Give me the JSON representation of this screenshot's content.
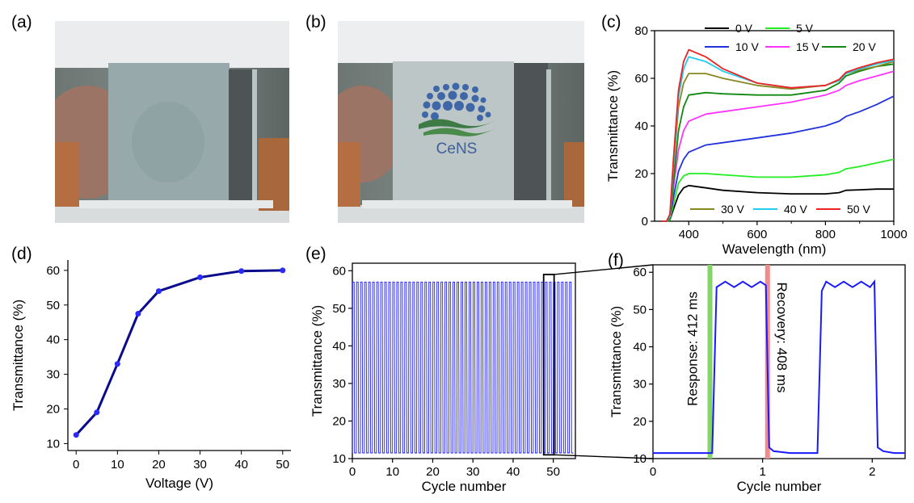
{
  "panels": {
    "a": "(a)",
    "b": "(b)",
    "c": "(c)",
    "d": "(d)",
    "e": "(e)",
    "f": "(f)"
  },
  "photo_b": {
    "logo_text": "CeNS"
  },
  "colors": {
    "blue_curve": "#1a1aff",
    "dark_blue": "#0a0a8c",
    "response_bar": "#86d36b",
    "recovery_bar": "#f08c8c"
  },
  "chart_data": [
    {
      "panel": "c",
      "type": "line",
      "xlabel": "Wavelength (nm)",
      "ylabel": "Transmittance (%)",
      "xlim": [
        300,
        1000
      ],
      "ylim": [
        0,
        80
      ],
      "xticks": [
        400,
        600,
        800,
        1000
      ],
      "yticks": [
        0,
        20,
        40,
        60,
        80
      ],
      "legend": "top",
      "series": [
        {
          "name": "0 V",
          "color": "#000000",
          "x": [
            320,
            335,
            345,
            355,
            370,
            385,
            400,
            450,
            500,
            600,
            700,
            800,
            840,
            860,
            900,
            950,
            1000
          ],
          "y": [
            0,
            0,
            0.5,
            5,
            11,
            14,
            15,
            14,
            13,
            12,
            11.5,
            11.5,
            12,
            13,
            13.2,
            13.5,
            13.5
          ]
        },
        {
          "name": "5 V",
          "color": "#22ee22",
          "x": [
            320,
            335,
            345,
            355,
            370,
            385,
            400,
            450,
            500,
            600,
            700,
            800,
            840,
            860,
            900,
            950,
            1000
          ],
          "y": [
            0,
            0,
            0.5,
            7,
            16,
            19,
            20,
            20,
            19.5,
            18.5,
            18.5,
            19.5,
            20.5,
            22,
            23,
            24.5,
            26
          ]
        },
        {
          "name": "10 V",
          "color": "#2233dd",
          "x": [
            320,
            335,
            345,
            355,
            370,
            385,
            400,
            450,
            500,
            600,
            700,
            800,
            840,
            860,
            900,
            950,
            1000
          ],
          "y": [
            0,
            0,
            1,
            10,
            21,
            26,
            29,
            32,
            33,
            35,
            37,
            40,
            42,
            44,
            46,
            49,
            52.5
          ]
        },
        {
          "name": "15 V",
          "color": "#ff33ff",
          "x": [
            320,
            335,
            345,
            355,
            370,
            385,
            400,
            450,
            500,
            600,
            700,
            800,
            840,
            860,
            900,
            950,
            1000
          ],
          "y": [
            0,
            0,
            1,
            14,
            30,
            38,
            42,
            45,
            46,
            48,
            50,
            53,
            55,
            57,
            59,
            61,
            63
          ]
        },
        {
          "name": "20 V",
          "color": "#118811",
          "x": [
            320,
            335,
            345,
            355,
            370,
            385,
            400,
            450,
            500,
            600,
            700,
            800,
            840,
            860,
            900,
            950,
            1000
          ],
          "y": [
            0,
            0,
            1,
            16,
            38,
            48,
            53,
            54,
            53.5,
            53,
            53,
            55,
            58,
            61,
            63,
            65,
            66
          ]
        },
        {
          "name": "30 V",
          "color": "#888822",
          "x": [
            320,
            335,
            345,
            355,
            370,
            385,
            400,
            450,
            500,
            600,
            700,
            800,
            840,
            860,
            900,
            950,
            1000
          ],
          "y": [
            0,
            0,
            2,
            22,
            48,
            58,
            62,
            62,
            60,
            57,
            55.5,
            57,
            59,
            62,
            63.5,
            65,
            67
          ]
        },
        {
          "name": "40 V",
          "color": "#22ccee",
          "x": [
            320,
            335,
            345,
            355,
            370,
            385,
            400,
            450,
            500,
            600,
            700,
            800,
            840,
            860,
            900,
            950,
            1000
          ],
          "y": [
            0,
            0,
            2,
            24,
            52,
            64,
            69,
            67,
            63,
            58,
            56,
            57,
            59,
            62,
            64,
            66,
            67.5
          ]
        },
        {
          "name": "50 V",
          "color": "#ee2222",
          "x": [
            320,
            335,
            345,
            355,
            370,
            385,
            400,
            450,
            500,
            600,
            700,
            800,
            840,
            860,
            900,
            950,
            1000
          ],
          "y": [
            0,
            0,
            3,
            26,
            55,
            67,
            72,
            69,
            64,
            58,
            56,
            57,
            59.5,
            62.5,
            64.5,
            66.5,
            68
          ]
        }
      ]
    },
    {
      "panel": "d",
      "type": "line",
      "xlabel": "Voltage (V)",
      "ylabel": "Transmittance (%)",
      "xlim": [
        -2,
        52
      ],
      "ylim": [
        8,
        63
      ],
      "xticks": [
        0,
        10,
        20,
        30,
        40,
        50
      ],
      "yticks": [
        10,
        20,
        30,
        40,
        50,
        60
      ],
      "x": [
        0,
        5,
        10,
        15,
        20,
        30,
        40,
        50
      ],
      "y": [
        12.5,
        19,
        33,
        47.5,
        54,
        58,
        59.8,
        60
      ]
    },
    {
      "panel": "e",
      "type": "line",
      "xlabel": "Cycle number",
      "ylabel": "Transmittance (%)",
      "xlim": [
        0,
        55.5
      ],
      "ylim": [
        10,
        62
      ],
      "xticks": [
        0,
        10,
        20,
        30,
        40,
        50
      ],
      "yticks": [
        10,
        20,
        30,
        40,
        50,
        60
      ],
      "cycles": 55,
      "high": 57,
      "low": 11.5
    },
    {
      "panel": "f",
      "type": "line",
      "xlabel": "Cycle number",
      "ylabel": "Transmittance (%)",
      "xlim": [
        0,
        2.3
      ],
      "ylim": [
        10,
        62
      ],
      "xticks": [
        0,
        1,
        2
      ],
      "yticks": [
        10,
        20,
        30,
        40,
        50,
        60
      ],
      "x": [
        0,
        0.5,
        0.54,
        0.58,
        0.66,
        0.74,
        0.82,
        0.9,
        0.98,
        1.03,
        1.06,
        1.1,
        1.25,
        1.5,
        1.54,
        1.58,
        1.66,
        1.74,
        1.82,
        1.9,
        1.98,
        2.02,
        2.05,
        2.1,
        2.2,
        2.3
      ],
      "y": [
        11.5,
        11.5,
        11.5,
        56,
        57.5,
        56,
        57.5,
        56,
        57.5,
        56.5,
        13,
        12,
        11.5,
        11.5,
        55,
        57.5,
        56,
        57.5,
        56,
        57.5,
        56,
        57.5,
        13,
        12,
        11.5,
        11.5
      ],
      "annotations": {
        "response": "Response: 412 ms",
        "recovery": "Recovery: 408 ms"
      },
      "response_x": 0.52,
      "recovery_x": 1.045
    }
  ]
}
